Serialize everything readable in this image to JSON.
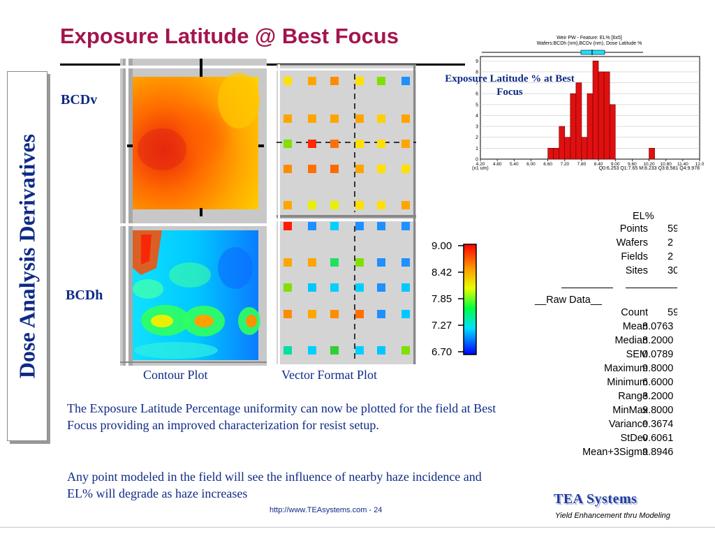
{
  "slide": {
    "title": "Exposure Latitude @ Best Focus",
    "sidebar_title": "Dose Analysis Derivatives",
    "row_labels": {
      "top": "BCDv",
      "bottom": "BCDh"
    },
    "captions": {
      "contour": "Contour Plot",
      "vector": "Vector Format Plot"
    },
    "paragraphs": [
      "The Exposure Latitude Percentage uniformity can now be plotted for the field at Best Focus providing an improved characterization for resist setup.",
      "Any point modeled in the field will see the influence of nearby haze incidence and EL% will degrade as haze increases"
    ],
    "footer_url": "http://www.TEAsystems.com - 24",
    "logo": "TEA Systems",
    "tagline": "Yield Enhancement thru Modeling"
  },
  "histogram": {
    "title_line1": "Weir PW - Feature: EL% [6x5]",
    "title_line2": "Wafers:BCDh (nm),BCDv (nm), Dose Latitude %",
    "overlay_label": "Exposure Latitude % at Best Focus",
    "unit": "(x1 um)",
    "quartiles": "Q0:6.253 Q1:7.65 M:8.233 Q3:8.581 Q4:9.978",
    "bar_color": "#e01010"
  },
  "colorbar": {
    "ticks": [
      "9.00",
      "8.42",
      "7.85",
      "7.27",
      "6.70"
    ]
  },
  "stats": {
    "header": "EL%",
    "rows": [
      {
        "label": "Points",
        "value": "59"
      },
      {
        "label": "Wafers",
        "value": "2"
      },
      {
        "label": "Fields",
        "value": "2"
      },
      {
        "label": "Sites",
        "value": "30"
      },
      {
        "label": "__Raw Data__",
        "value": ""
      },
      {
        "label": "Count",
        "value": "59"
      },
      {
        "label": "Mean",
        "value": "8.0763"
      },
      {
        "label": "Median",
        "value": "8.2000"
      },
      {
        "label": "SEM",
        "value": "0.0789"
      },
      {
        "label": "Maximum",
        "value": "9.8000"
      },
      {
        "label": "Minimum",
        "value": "6.6000"
      },
      {
        "label": "Range",
        "value": "3.2000"
      },
      {
        "label": "MinMax",
        "value": "9.8000"
      },
      {
        "label": "Variance",
        "value": "0.3674"
      },
      {
        "label": "StDev",
        "value": "0.6061"
      },
      {
        "label": "Mean+3Sigma",
        "value": "9.8946"
      }
    ]
  },
  "chart_data": {
    "type": "bar",
    "title": "Weir PW - Feature: EL% [6x5]",
    "xlabel": "(x1 um)",
    "ylabel": "",
    "x_tick_labels": [
      "4.20",
      "4.80",
      "5.40",
      "6.00",
      "6.60",
      "7.20",
      "7.80",
      "8.40",
      "9.00",
      "9.60",
      "10.20",
      "10.80",
      "11.40",
      "12.0"
    ],
    "y_tick_labels": [
      "0",
      "1",
      "2",
      "3",
      "4",
      "5",
      "6",
      "7",
      "8",
      "9"
    ],
    "xlim": [
      4.2,
      12.0
    ],
    "ylim": [
      0,
      9.4
    ],
    "bins": [
      6.6,
      6.8,
      7.0,
      7.2,
      7.4,
      7.6,
      7.8,
      8.0,
      8.2,
      8.4,
      8.6,
      8.8,
      9.0,
      10.2
    ],
    "values": [
      1,
      1,
      3,
      2,
      6,
      7,
      2,
      6,
      9,
      8,
      8,
      5,
      0,
      1
    ],
    "bin_width": 0.2
  }
}
